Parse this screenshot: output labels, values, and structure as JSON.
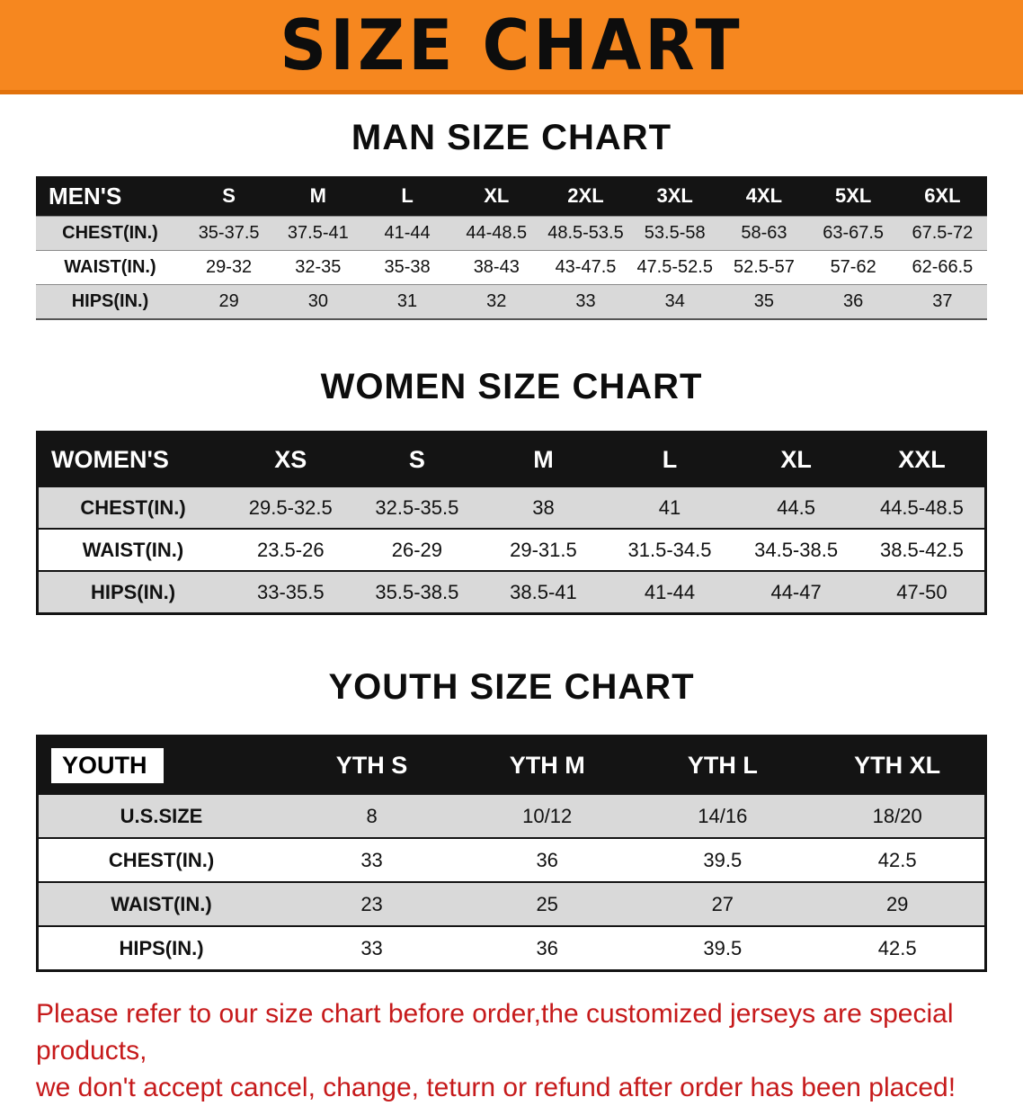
{
  "banner": {
    "title": "SIZE CHART",
    "bg_color": "#f6871f"
  },
  "sections": {
    "men": {
      "heading": "MAN SIZE CHART",
      "table": {
        "header": [
          "MEN'S",
          "S",
          "M",
          "L",
          "XL",
          "2XL",
          "3XL",
          "4XL",
          "5XL",
          "6XL"
        ],
        "rows": [
          [
            "CHEST(IN.)",
            "35-37.5",
            "37.5-41",
            "41-44",
            "44-48.5",
            "48.5-53.5",
            "53.5-58",
            "58-63",
            "63-67.5",
            "67.5-72"
          ],
          [
            "WAIST(IN.)",
            "29-32",
            "32-35",
            "35-38",
            "38-43",
            "43-47.5",
            "47.5-52.5",
            "52.5-57",
            "57-62",
            "62-66.5"
          ],
          [
            "HIPS(IN.)",
            "29",
            "30",
            "31",
            "32",
            "33",
            "34",
            "35",
            "36",
            "37"
          ]
        ]
      }
    },
    "women": {
      "heading": "WOMEN SIZE CHART",
      "table": {
        "header": [
          "WOMEN'S",
          "XS",
          "S",
          "M",
          "L",
          "XL",
          "XXL"
        ],
        "rows": [
          [
            "CHEST(IN.)",
            "29.5-32.5",
            "32.5-35.5",
            "38",
            "41",
            "44.5",
            "44.5-48.5"
          ],
          [
            "WAIST(IN.)",
            "23.5-26",
            "26-29",
            "29-31.5",
            "31.5-34.5",
            "34.5-38.5",
            "38.5-42.5"
          ],
          [
            "HIPS(IN.)",
            "33-35.5",
            "35.5-38.5",
            "38.5-41",
            "41-44",
            "44-47",
            "47-50"
          ]
        ]
      }
    },
    "youth": {
      "heading": "YOUTH SIZE CHART",
      "table": {
        "header": [
          "YOUTH",
          "YTH S",
          "YTH M",
          "YTH L",
          "YTH XL"
        ],
        "rows": [
          [
            "U.S.SIZE",
            "8",
            "10/12",
            "14/16",
            "18/20"
          ],
          [
            "CHEST(IN.)",
            "33",
            "36",
            "39.5",
            "42.5"
          ],
          [
            "WAIST(IN.)",
            "23",
            "25",
            "27",
            "29"
          ],
          [
            "HIPS(IN.)",
            "33",
            "36",
            "39.5",
            "42.5"
          ]
        ]
      }
    }
  },
  "footer": {
    "line1": "Please refer to our size chart before order,the customized jerseys are special products,",
    "line2": "we don't accept cancel, change, teturn or refund after order has been placed!",
    "text_color": "#c61a1b"
  }
}
